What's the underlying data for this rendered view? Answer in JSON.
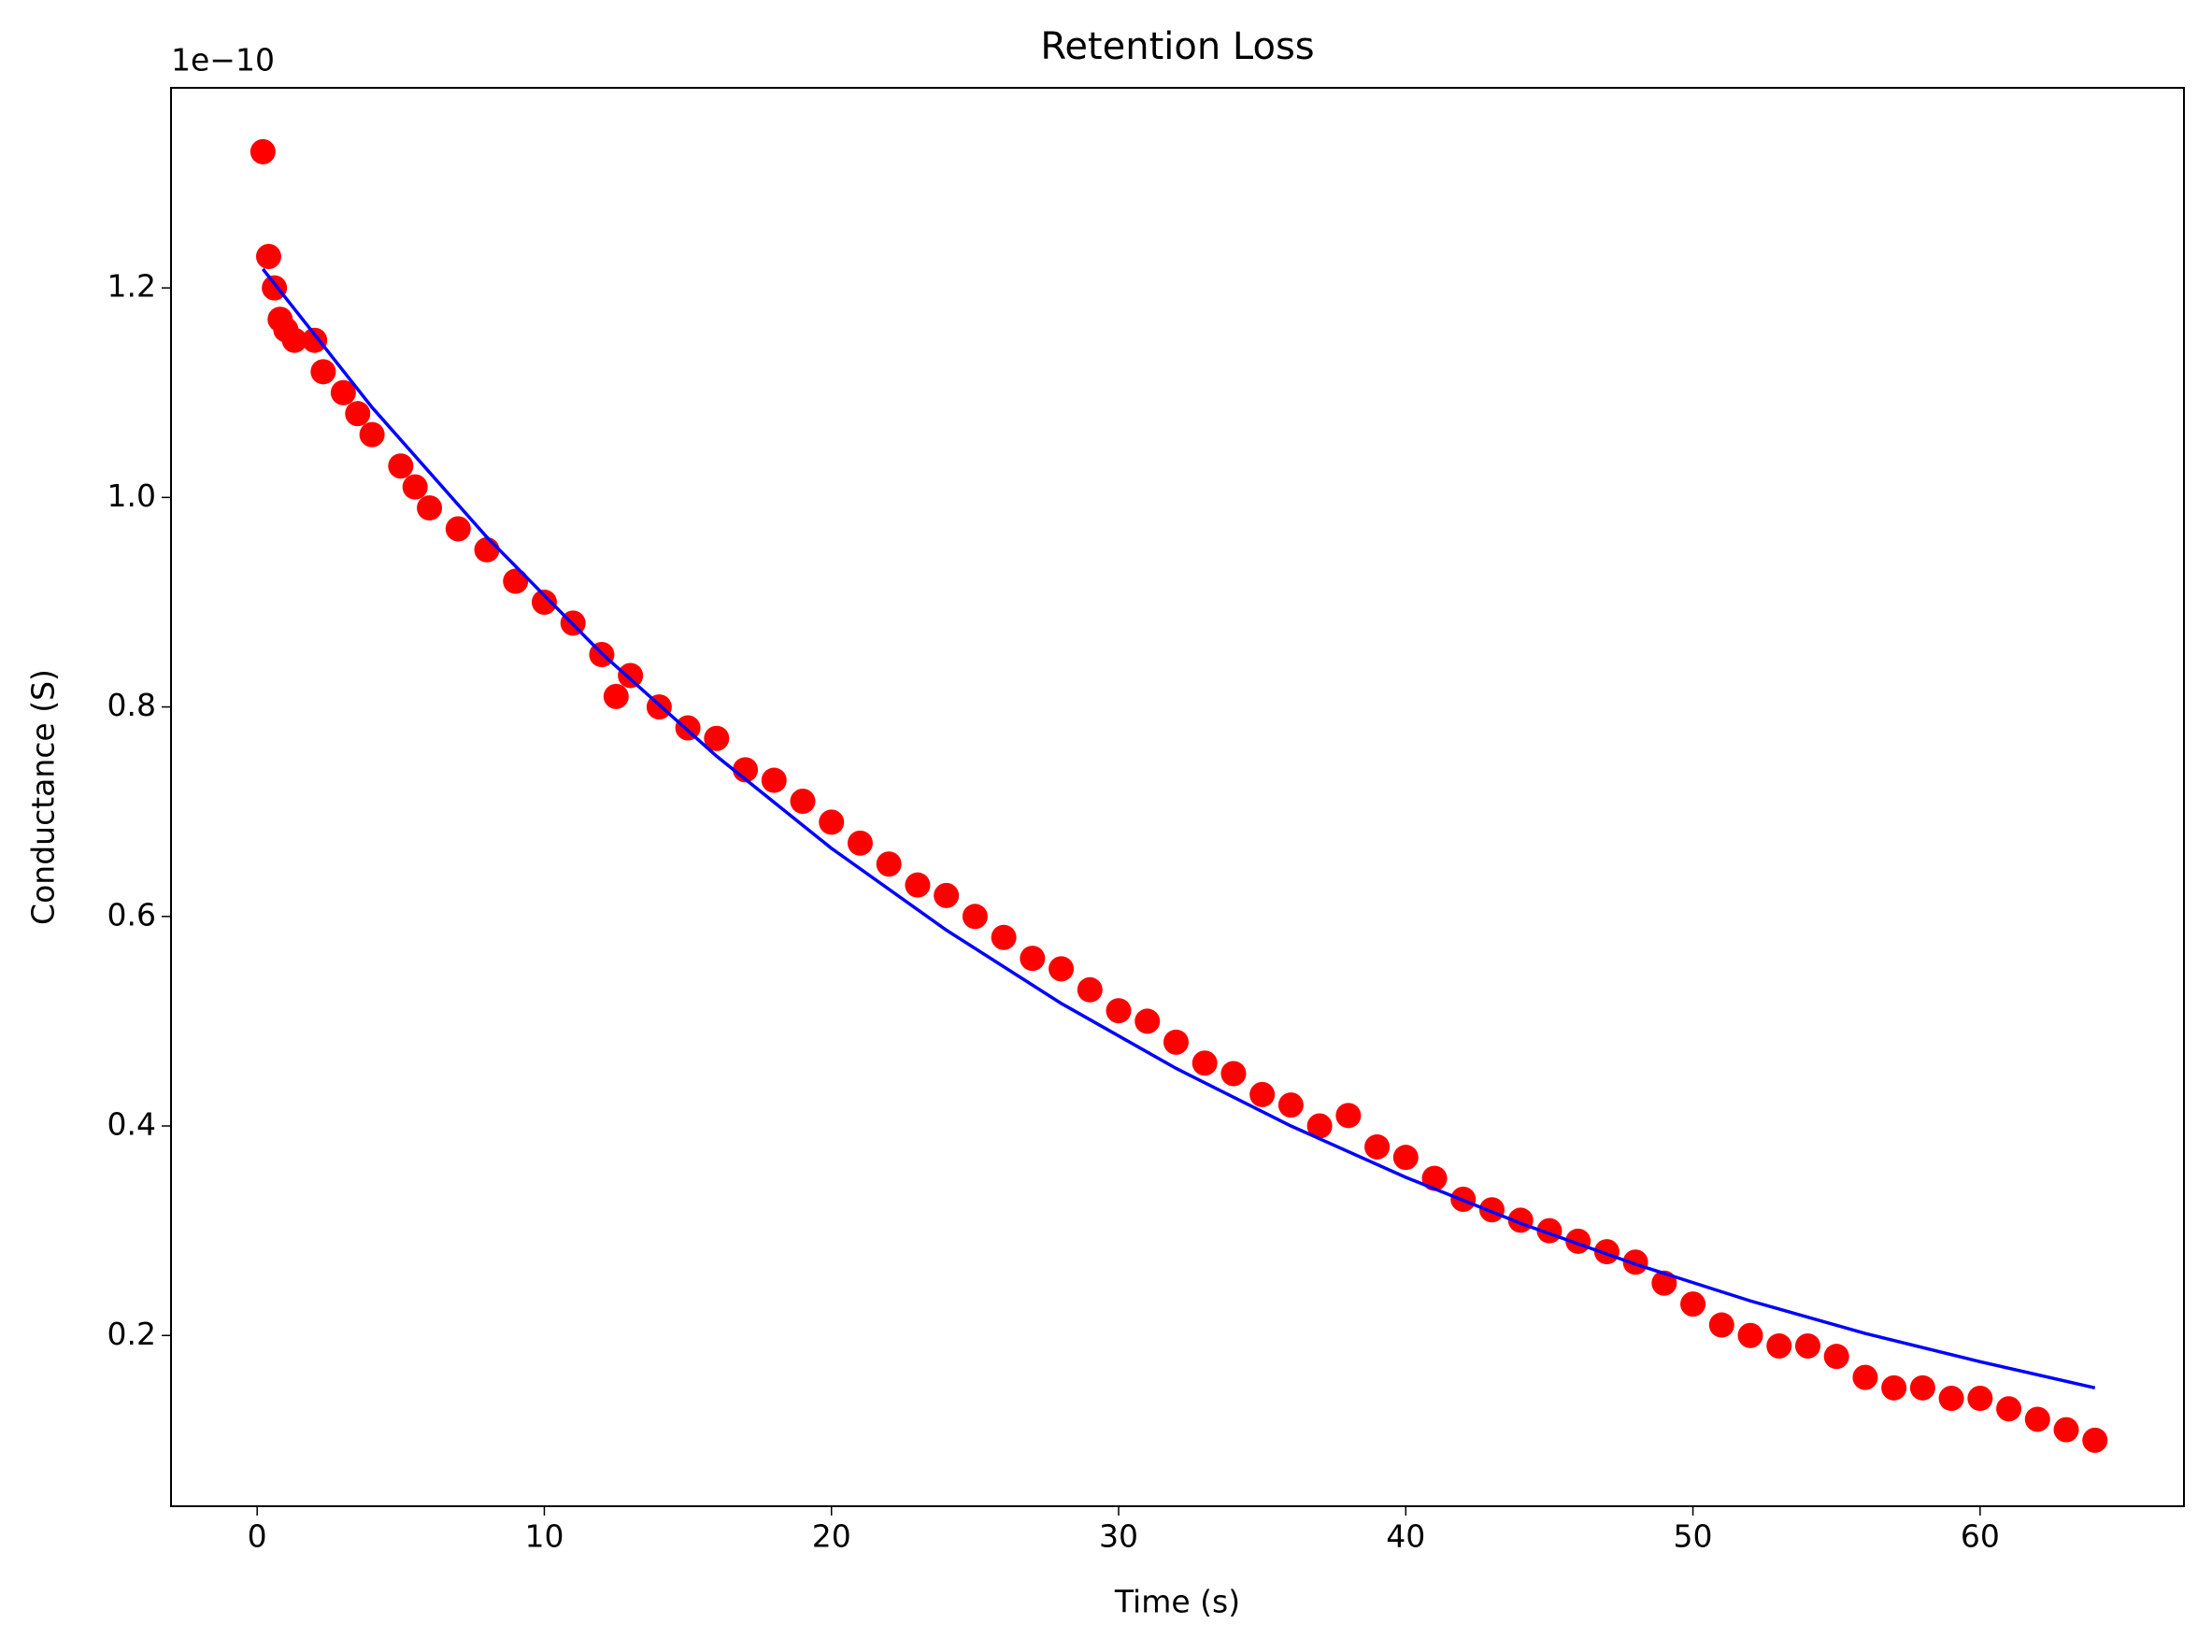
{
  "chart_data": {
    "type": "scatter",
    "title": "Retention Loss",
    "x_label": "Time (s)",
    "y_label": "Conductance (S)",
    "y_offset_label": "1e−10",
    "xlim": [
      -3.0,
      67.1
    ],
    "xticks": [
      0,
      10,
      20,
      30,
      40,
      50,
      60
    ],
    "ylim": [
      0.037,
      1.391
    ],
    "yticks": [
      0.2,
      0.4,
      0.6,
      0.8,
      {
        "value": 1,
        "label": "1.0"
      },
      1.2
    ],
    "series": [
      {
        "type": "scatter",
        "color": "#ff0000",
        "x": [
          0.2,
          0.4,
          0.6,
          0.8,
          1,
          1.3,
          2,
          2.3,
          3,
          3.5,
          4,
          5,
          5.5,
          6,
          7,
          8,
          9,
          10,
          11,
          12,
          12.5,
          13,
          14,
          15,
          16,
          17,
          18,
          19,
          20,
          21,
          22,
          23,
          24,
          25,
          26,
          27,
          28,
          29,
          30,
          31,
          32,
          33,
          34,
          35,
          36,
          37,
          38,
          39,
          40,
          41,
          42,
          43,
          44,
          45,
          46,
          47,
          48,
          49,
          50,
          51,
          52,
          53,
          54,
          55,
          56,
          57,
          58,
          59,
          60,
          61,
          62,
          63,
          64
        ],
        "values": [
          1.33,
          1.23,
          1.2,
          1.17,
          1.16,
          1.15,
          1.15,
          1.12,
          1.1,
          1.08,
          1.06,
          1.03,
          1.01,
          0.99,
          0.97,
          0.95,
          0.92,
          0.9,
          0.88,
          0.85,
          0.81,
          0.83,
          0.8,
          0.78,
          0.77,
          0.74,
          0.73,
          0.71,
          0.69,
          0.67,
          0.65,
          0.63,
          0.62,
          0.6,
          0.58,
          0.56,
          0.55,
          0.53,
          0.51,
          0.5,
          0.48,
          0.46,
          0.45,
          0.43,
          0.42,
          0.4,
          0.41,
          0.38,
          0.37,
          0.35,
          0.33,
          0.32,
          0.31,
          0.3,
          0.29,
          0.28,
          0.27,
          0.25,
          0.23,
          0.21,
          0.2,
          0.19,
          0.19,
          0.18,
          0.16,
          0.15,
          0.15,
          0.14,
          0.14,
          0.13,
          0.12,
          0.11,
          0.1
        ]
      },
      {
        "type": "line",
        "color": "#0000ff",
        "x": [
          0.2,
          4,
          8,
          12,
          16,
          20,
          24,
          28,
          32,
          36,
          40,
          44,
          48,
          52,
          56,
          60,
          64
        ],
        "values": [
          1.218,
          1.086,
          0.962,
          0.851,
          0.753,
          0.665,
          0.587,
          0.517,
          0.455,
          0.4,
          0.351,
          0.307,
          0.268,
          0.233,
          0.202,
          0.175,
          0.15
        ]
      }
    ]
  }
}
